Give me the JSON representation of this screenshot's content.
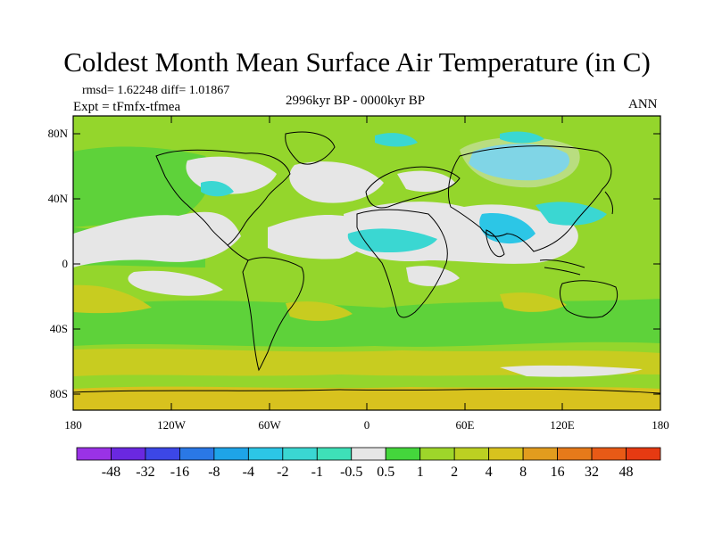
{
  "title": "Coldest Month Mean Surface Air Temperature (in C)",
  "stats": "rmsd= 1.62248 diff= 1.01867",
  "expt": "Expt = tFmfx-tfmea",
  "period": "2996kyr BP - 0000kyr BP",
  "season": "ANN",
  "lat_labels": [
    "80N",
    "40N",
    "0",
    "40S",
    "80S"
  ],
  "lon_labels": [
    "180",
    "120W",
    "60W",
    "0",
    "60E",
    "120E",
    "180"
  ],
  "colorbar": {
    "labels": [
      "-48",
      "-32",
      "-16",
      "-8",
      "-4",
      "-2",
      "-1",
      "-0.5",
      "0.5",
      "1",
      "2",
      "4",
      "8",
      "16",
      "32",
      "48"
    ],
    "colors": [
      "#9a32e6",
      "#6a28e0",
      "#3c47e6",
      "#2a78e6",
      "#1ea4e8",
      "#2cc6e6",
      "#3ad7d2",
      "#3ee0b8",
      "#e6e6e6",
      "#44d63c",
      "#9ed62a",
      "#bcd022",
      "#d8c21e",
      "#e29c1e",
      "#e67a1a",
      "#e85a16",
      "#e63a12"
    ]
  },
  "field_colors": {
    "background": "#94d62c",
    "land": "#a6d426",
    "ocean_green": "#5ed23a",
    "neutral": "#e6e6e6",
    "cool": "#3ad7d2",
    "cooler": "#2cc6e6",
    "warm": "#c8cc20",
    "warmer": "#d8c21e"
  }
}
